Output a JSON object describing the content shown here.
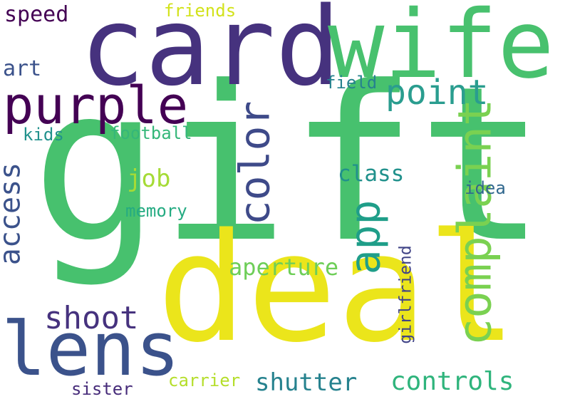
{
  "words": {
    "gift": {
      "text": "gift",
      "color": "#47c16e"
    },
    "deal": {
      "text": "deal",
      "color": "#ebe51b"
    },
    "card": {
      "text": "card",
      "color": "#46327e"
    },
    "wife": {
      "text": "wife",
      "color": "#48c16e"
    },
    "lens": {
      "text": "lens",
      "color": "#3b528b"
    },
    "purple": {
      "text": "purple",
      "color": "#440154"
    },
    "complaint": {
      "text": "complaint",
      "color": "#7ad151"
    },
    "color": {
      "text": "color",
      "color": "#3e4a89"
    },
    "app": {
      "text": "app",
      "color": "#1f9e89"
    },
    "point": {
      "text": "point",
      "color": "#2a9d8f"
    },
    "access": {
      "text": "access",
      "color": "#3b528b"
    },
    "shoot": {
      "text": "shoot",
      "color": "#46327e"
    },
    "aperture": {
      "text": "aperture",
      "color": "#6ece58"
    },
    "controls": {
      "text": "controls",
      "color": "#2fb47c"
    },
    "shutter": {
      "text": "shutter",
      "color": "#26828e"
    },
    "speed": {
      "text": "speed",
      "color": "#440154"
    },
    "art": {
      "text": "art",
      "color": "#3b528b"
    },
    "class": {
      "text": "class",
      "color": "#21918c"
    },
    "job": {
      "text": "job",
      "color": "#a5db36"
    },
    "girlfriend": {
      "text": "girlfriend",
      "color": "#414487"
    },
    "friends": {
      "text": "friends",
      "color": "#d2e21b"
    },
    "field": {
      "text": "field",
      "color": "#26828e"
    },
    "kids": {
      "text": "kids",
      "color": "#21918c"
    },
    "football": {
      "text": "football",
      "color": "#35b779"
    },
    "memory": {
      "text": "memory",
      "color": "#25ab82"
    },
    "idea": {
      "text": "idea",
      "color": "#31688e"
    },
    "carrier": {
      "text": "carrier",
      "color": "#b5de2b"
    },
    "sister": {
      "text": "sister",
      "color": "#472c7a"
    }
  }
}
